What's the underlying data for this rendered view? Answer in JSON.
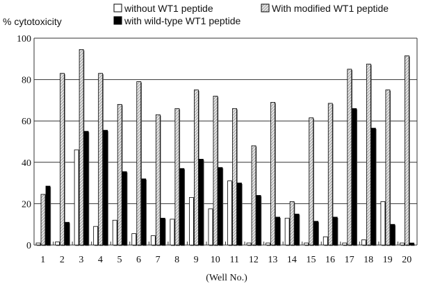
{
  "chart_data": {
    "type": "bar",
    "ylabel": "% cytotoxicity",
    "xlabel": "(Well No.)",
    "ylim": [
      0,
      100
    ],
    "yticks": [
      0,
      20,
      40,
      60,
      80,
      100
    ],
    "grid": true,
    "legend_position": "top",
    "categories": [
      "1",
      "2",
      "3",
      "4",
      "5",
      "6",
      "7",
      "8",
      "9",
      "10",
      "11",
      "12",
      "13",
      "14",
      "15",
      "16",
      "17",
      "18",
      "19",
      "20"
    ],
    "series": [
      {
        "name": "without WT1 peptide",
        "fill": "white",
        "values": [
          1,
          1.5,
          46,
          9,
          12,
          5.5,
          4.5,
          12.5,
          23,
          17.5,
          31,
          1,
          1,
          13,
          1,
          4,
          1,
          2.5,
          21,
          1
        ]
      },
      {
        "name": "With modified WT1 peptide",
        "fill": "hatched",
        "values": [
          24.5,
          83,
          94.5,
          83,
          68,
          79,
          63,
          66,
          75,
          72,
          66,
          48,
          69,
          21,
          61.5,
          68.5,
          85,
          87.5,
          75,
          91.5
        ]
      },
      {
        "name": "with wild-type WT1 peptide",
        "fill": "black",
        "values": [
          28.5,
          11,
          55,
          55.5,
          35.5,
          32,
          13,
          37,
          41.5,
          37.5,
          30,
          24,
          13.5,
          15,
          11.5,
          13.5,
          66,
          56.5,
          10,
          1
        ]
      }
    ]
  }
}
